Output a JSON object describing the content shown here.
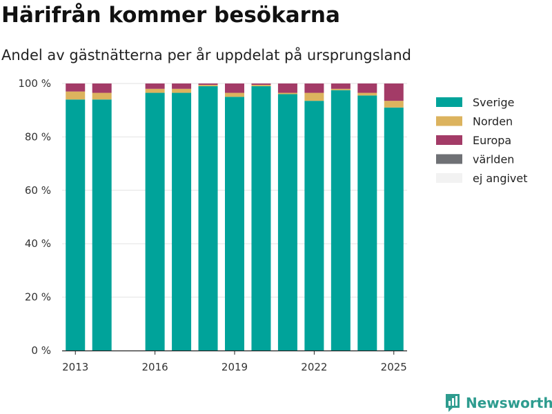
{
  "header": {
    "title": "Härifrån kommer besökarna",
    "subtitle": "Andel av gästnätterna per år uppdelat på ursprungsland"
  },
  "brand": {
    "name": "Newsworthy",
    "color": "#2e9c8f"
  },
  "chart_data": {
    "type": "bar",
    "stacked": true,
    "categories": [
      2013,
      2014,
      2015,
      2016,
      2017,
      2018,
      2019,
      2020,
      2021,
      2022,
      2023,
      2024,
      2025
    ],
    "x_ticks": [
      "2013",
      "2016",
      "2019",
      "2022",
      "2025"
    ],
    "y_ticks": [
      "0 %",
      "20 %",
      "40 %",
      "60 %",
      "80 %",
      "100 %"
    ],
    "ylim": [
      0,
      100
    ],
    "grid": true,
    "legend_position": "right",
    "series": [
      {
        "name": "Sverige",
        "color": "#00a39a",
        "values": [
          94,
          94,
          null,
          96.5,
          96.5,
          99,
          95,
          99,
          96,
          93.5,
          97.5,
          95.5,
          91
        ]
      },
      {
        "name": "Norden",
        "color": "#dcb35e",
        "values": [
          3,
          2.5,
          null,
          1.5,
          1.5,
          0.5,
          1.5,
          0.5,
          0.5,
          3,
          0.5,
          1,
          2.5
        ]
      },
      {
        "name": "Europa",
        "color": "#a33b67",
        "values": [
          3,
          3.5,
          null,
          2,
          2,
          0.5,
          3.5,
          0.5,
          3.5,
          3.5,
          2,
          3.5,
          6.5
        ]
      },
      {
        "name": "världen",
        "color": "#6f7175",
        "values": [
          0,
          0,
          null,
          0,
          0,
          0,
          0,
          0,
          0,
          0,
          0,
          0,
          0
        ]
      },
      {
        "name": "ej angivet",
        "color": "#f2f2f2",
        "values": [
          0,
          0,
          null,
          0,
          0,
          0,
          0,
          0,
          0,
          0,
          0,
          0,
          0
        ]
      }
    ]
  }
}
